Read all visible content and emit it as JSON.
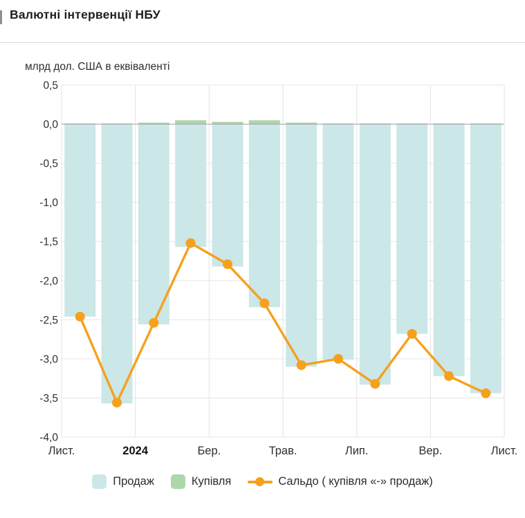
{
  "header": {
    "title": "Валютні інтервенції НБУ"
  },
  "chart_data": {
    "type": "bar",
    "combo": "monthly bars (sales negative, purchases positive) with balance line overlay",
    "title": "Валютні інтервенції НБУ",
    "subtitle": "млрд дол. США в еквіваленті",
    "ylabel": "млрд дол. США в еквіваленті",
    "xlabel": "",
    "ylim": [
      -4.0,
      0.5
    ],
    "grid": true,
    "legend_position": "bottom",
    "n_points": 12,
    "x_tick_labels": [
      "Лист.",
      "2024",
      "Бер.",
      "Трав.",
      "Лип.",
      "Вер.",
      "Лист."
    ],
    "x_tick_bold": [
      false,
      true,
      false,
      false,
      false,
      false,
      false
    ],
    "y_tick_labels": [
      "0,5",
      "0,0",
      "-0,5",
      "-1,0",
      "-1,5",
      "-2,0",
      "-2,5",
      "-3,0",
      "-3,5",
      "-4,0"
    ],
    "series": [
      {
        "name": "Продаж",
        "type": "bar",
        "color": "#cbe7e8",
        "values": [
          -2.46,
          -3.57,
          -2.56,
          -1.57,
          -1.82,
          -2.34,
          -3.1,
          -3.01,
          -3.33,
          -2.68,
          -3.22,
          -3.44
        ]
      },
      {
        "name": "Купівля",
        "type": "bar",
        "color": "#aed6ab",
        "values": [
          0.01,
          0.01,
          0.02,
          0.05,
          0.03,
          0.05,
          0.02,
          0.01,
          0.01,
          0.01,
          0.01,
          0.01
        ]
      },
      {
        "name": "Сальдо ( купівля «-» продаж)",
        "type": "line",
        "color": "#f5a11d",
        "values": [
          -2.46,
          -3.56,
          -2.54,
          -1.52,
          -1.79,
          -2.29,
          -3.08,
          -3.0,
          -3.32,
          -2.68,
          -3.22,
          -3.44
        ]
      }
    ]
  }
}
